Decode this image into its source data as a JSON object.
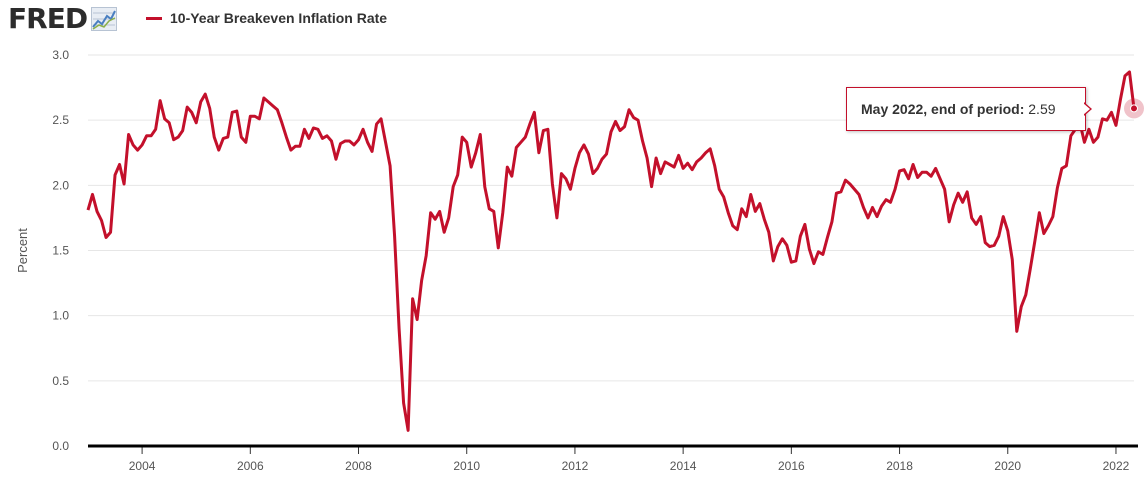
{
  "header": {
    "logo_text": "FRED",
    "logo_icon": "line-chart-icon",
    "legend_label": "10-Year Breakeven Inflation Rate",
    "legend_color": "#c3102b"
  },
  "tooltip": {
    "name": "May 2022, end of period:",
    "value": "2.59"
  },
  "chart_data": {
    "type": "line",
    "title": "10-Year Breakeven Inflation Rate",
    "xlabel": "",
    "ylabel": "Percent",
    "xlim": [
      "2003-01",
      "2022-05"
    ],
    "ylim": [
      0.0,
      3.0
    ],
    "x_ticks": [
      "2004",
      "2006",
      "2008",
      "2010",
      "2012",
      "2014",
      "2016",
      "2018",
      "2020",
      "2022"
    ],
    "y_ticks": [
      "0.0",
      "0.5",
      "1.0",
      "1.5",
      "2.0",
      "2.5",
      "3.0"
    ],
    "grid": "horizontal",
    "series": [
      {
        "name": "10-Year Breakeven Inflation Rate",
        "color": "#c3102b",
        "start": "2003-01",
        "frequency": "monthly",
        "values": [
          1.81,
          1.93,
          1.8,
          1.73,
          1.6,
          1.64,
          2.08,
          2.16,
          2.01,
          2.39,
          2.31,
          2.27,
          2.31,
          2.38,
          2.38,
          2.43,
          2.65,
          2.51,
          2.48,
          2.35,
          2.37,
          2.42,
          2.6,
          2.56,
          2.48,
          2.64,
          2.7,
          2.59,
          2.37,
          2.27,
          2.36,
          2.37,
          2.56,
          2.57,
          2.37,
          2.33,
          2.53,
          2.53,
          2.51,
          2.67,
          2.64,
          2.61,
          2.58,
          2.48,
          2.37,
          2.27,
          2.3,
          2.3,
          2.43,
          2.36,
          2.44,
          2.43,
          2.36,
          2.38,
          2.34,
          2.2,
          2.32,
          2.34,
          2.34,
          2.31,
          2.35,
          2.43,
          2.33,
          2.26,
          2.47,
          2.51,
          2.33,
          2.15,
          1.61,
          0.9,
          0.33,
          0.12,
          1.13,
          0.97,
          1.27,
          1.46,
          1.79,
          1.74,
          1.8,
          1.64,
          1.75,
          1.99,
          2.08,
          2.37,
          2.33,
          2.14,
          2.25,
          2.39,
          1.99,
          1.82,
          1.8,
          1.52,
          1.79,
          2.14,
          2.07,
          2.29,
          2.33,
          2.37,
          2.47,
          2.56,
          2.25,
          2.42,
          2.43,
          2.01,
          1.75,
          2.09,
          2.05,
          1.97,
          2.13,
          2.25,
          2.31,
          2.24,
          2.09,
          2.13,
          2.2,
          2.24,
          2.41,
          2.49,
          2.42,
          2.45,
          2.58,
          2.52,
          2.5,
          2.34,
          2.21,
          1.99,
          2.21,
          2.09,
          2.18,
          2.16,
          2.14,
          2.23,
          2.13,
          2.17,
          2.12,
          2.18,
          2.21,
          2.25,
          2.28,
          2.15,
          1.97,
          1.91,
          1.79,
          1.69,
          1.66,
          1.82,
          1.76,
          1.93,
          1.8,
          1.86,
          1.74,
          1.64,
          1.42,
          1.53,
          1.59,
          1.54,
          1.41,
          1.42,
          1.61,
          1.7,
          1.51,
          1.4,
          1.49,
          1.47,
          1.6,
          1.72,
          1.94,
          1.95,
          2.04,
          2.01,
          1.97,
          1.93,
          1.83,
          1.75,
          1.83,
          1.76,
          1.84,
          1.89,
          1.87,
          1.97,
          2.11,
          2.12,
          2.05,
          2.16,
          2.06,
          2.1,
          2.1,
          2.07,
          2.13,
          2.05,
          1.97,
          1.72,
          1.85,
          1.94,
          1.87,
          1.95,
          1.75,
          1.7,
          1.76,
          1.56,
          1.53,
          1.54,
          1.61,
          1.76,
          1.65,
          1.43,
          0.88,
          1.07,
          1.16,
          1.36,
          1.57,
          1.79,
          1.63,
          1.69,
          1.76,
          1.98,
          2.13,
          2.15,
          2.38,
          2.43,
          2.48,
          2.33,
          2.43,
          2.33,
          2.37,
          2.51,
          2.5,
          2.56,
          2.46,
          2.66,
          2.84,
          2.87,
          2.59
        ]
      }
    ],
    "highlight": {
      "x": "2022-05",
      "y": 2.59
    }
  }
}
